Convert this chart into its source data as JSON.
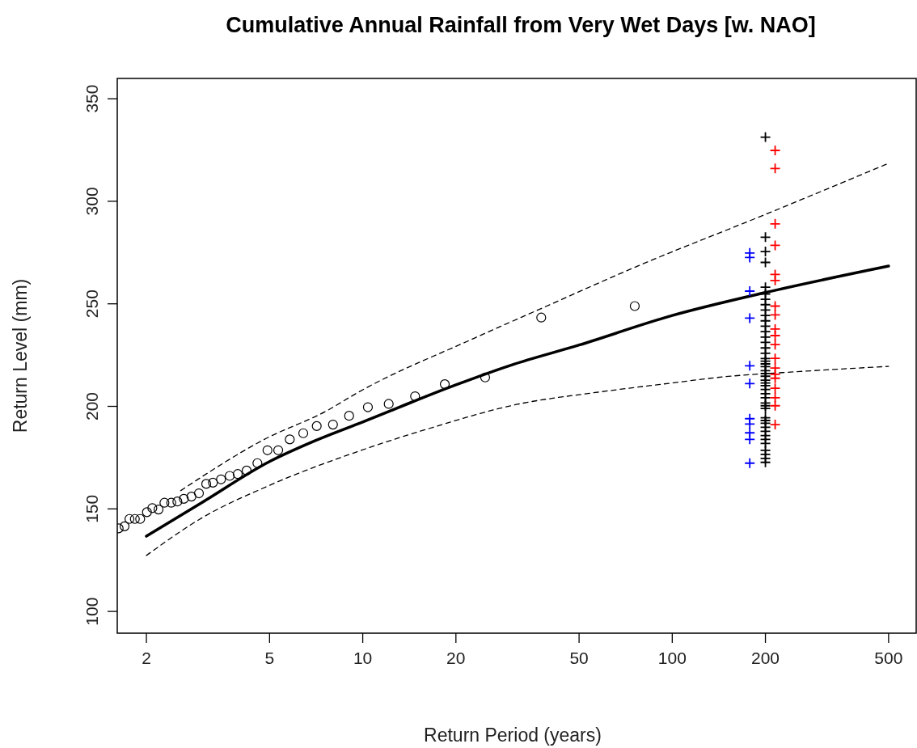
{
  "chart_data": {
    "type": "scatter",
    "title": "Cumulative Annual Rainfall from Very Wet Days [w. NAO]",
    "xlabel": "Return Period (years)",
    "ylabel": "Return Level (mm)",
    "log": "x",
    "xlim": [
      1.61,
      614
    ],
    "ylim": [
      89.4,
      359.9
    ],
    "xticks": [
      2,
      5,
      10,
      20,
      50,
      100,
      200,
      500
    ],
    "yticks": [
      100,
      150,
      200,
      250,
      300,
      350
    ],
    "grid": false,
    "series": [
      {
        "marker": "circle",
        "color": "#000000",
        "x": [
          1.627,
          1.7,
          1.763,
          1.835,
          1.909,
          2.008,
          2.09,
          2.189,
          2.287,
          2.406,
          2.518,
          2.642,
          2.796,
          2.956,
          3.121,
          3.281,
          3.484,
          3.716,
          3.946,
          4.216,
          4.567,
          4.922,
          5.332,
          5.81,
          6.424,
          7.101,
          8.013,
          9.035,
          10.39,
          12.13,
          14.76,
          18.41,
          24.86,
          37.73,
          75.65
        ],
        "values": [
          140.5,
          141.5,
          145.1,
          145.1,
          145.1,
          148.4,
          150.4,
          149.7,
          153.0,
          153.0,
          153.6,
          154.9,
          156.0,
          157.6,
          162.2,
          162.8,
          164.4,
          166.1,
          167.0,
          168.7,
          172.3,
          178.6,
          178.6,
          183.9,
          186.9,
          190.4,
          191.1,
          195.4,
          199.6,
          201.2,
          204.9,
          210.8,
          214.1,
          243.3,
          248.9
        ]
      },
      {
        "type": "line",
        "line_style": "solid",
        "color": "#000000",
        "x": [
          2,
          3,
          5,
          7,
          10,
          20,
          30,
          50,
          100,
          200,
          500
        ],
        "values": [
          136.7,
          152.8,
          173.1,
          183.2,
          192.4,
          210.5,
          220.0,
          229.9,
          244.3,
          255.5,
          268.4
        ]
      },
      {
        "type": "line",
        "line_style": "dashed",
        "color": "#000000",
        "x": [
          2.58,
          4.81,
          7.75,
          9.5,
          22.9,
          38.5,
          76.2,
          200,
          500
        ],
        "values": [
          158.9,
          183.9,
          198.3,
          206.2,
          233.2,
          248.3,
          268.0,
          293.6,
          318.5
        ]
      },
      {
        "type": "line",
        "line_style": "dashed",
        "color": "#000000",
        "x": [
          2,
          3.03,
          5.0,
          10.5,
          16.3,
          31.6,
          57.5,
          101,
          140,
          259,
          500
        ],
        "values": [
          127.3,
          145.7,
          161.5,
          179.9,
          189.1,
          201.0,
          206.9,
          211.5,
          214.1,
          217.0,
          219.5
        ]
      },
      {
        "marker": "cross",
        "color": "#0000ff",
        "x": [
          178,
          178,
          178,
          178,
          178,
          178,
          178,
          178,
          178,
          178,
          178
        ],
        "values": [
          274.8,
          272.6,
          256.2,
          243.0,
          219.8,
          211.1,
          194.0,
          191.4,
          187.1,
          183.9,
          172.3
        ]
      },
      {
        "marker": "cross",
        "color": "#000000",
        "x": [
          200,
          200,
          200,
          200,
          200,
          200,
          200,
          200,
          200,
          200,
          200,
          200,
          200,
          200,
          200,
          200,
          200,
          200,
          200,
          200,
          200,
          200,
          200,
          200,
          200,
          200,
          200,
          200,
          200,
          200,
          200,
          200,
          200,
          200,
          200,
          200,
          200,
          200,
          200,
          200,
          200,
          200,
          200,
          200,
          200
        ],
        "values": [
          331.3,
          282.5,
          275.5,
          270.2,
          258.1,
          254.8,
          252.2,
          249.6,
          247.0,
          244.3,
          241.7,
          239.1,
          236.4,
          233.8,
          231.2,
          228.5,
          225.9,
          223.3,
          222.0,
          220.7,
          219.4,
          217.4,
          216.0,
          214.7,
          212.8,
          211.4,
          210.1,
          208.2,
          206.2,
          204.2,
          201.6,
          200.3,
          199.0,
          194.4,
          193.1,
          191.8,
          189.8,
          187.8,
          185.8,
          183.9,
          181.9,
          178.6,
          176.6,
          174.6,
          172.7
        ]
      },
      {
        "marker": "cross",
        "color": "#ff0000",
        "x": [
          215,
          215,
          215,
          215,
          215,
          215,
          215,
          215,
          215,
          215,
          215,
          215,
          215,
          215,
          215,
          215,
          215,
          215,
          215
        ],
        "values": [
          324.8,
          316.0,
          289.0,
          278.5,
          264.3,
          261.4,
          248.9,
          244.6,
          237.7,
          234.5,
          230.1,
          223.4,
          218.7,
          215.6,
          213.7,
          208.8,
          204.2,
          200.3,
          191.1
        ]
      }
    ]
  }
}
